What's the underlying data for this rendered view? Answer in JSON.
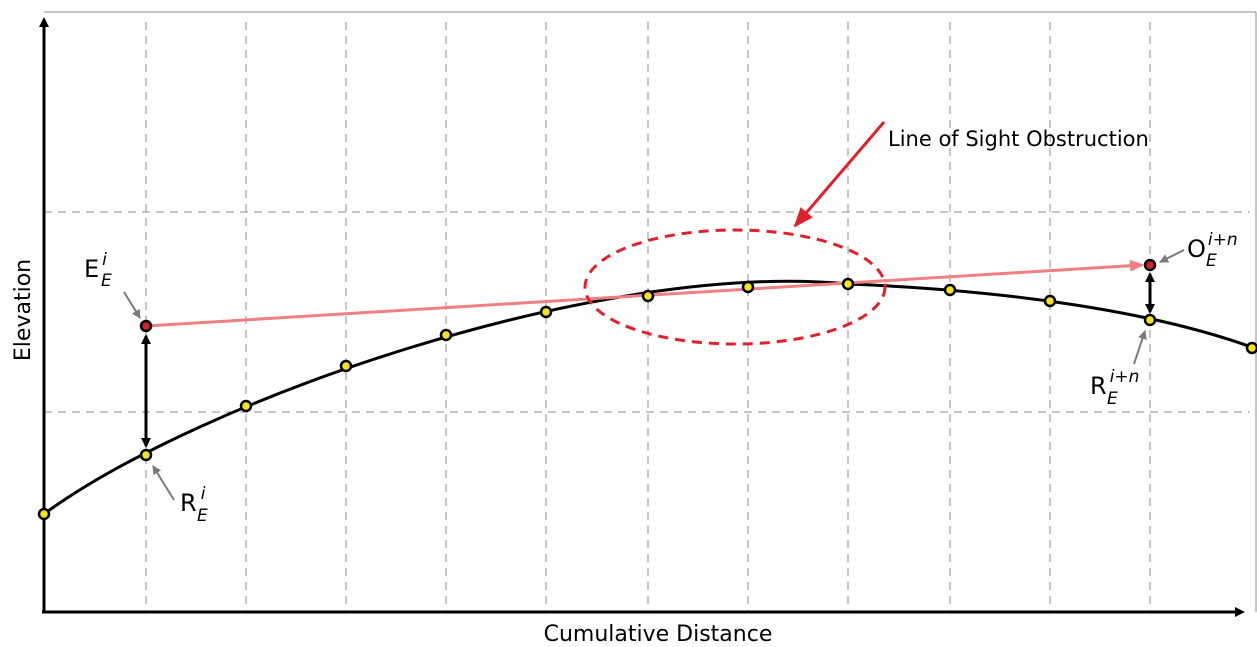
{
  "axes": {
    "x_label": "Cumulative Distance",
    "y_label": "Elevation"
  },
  "annotation": {
    "obstruction_label": "Line of Sight Obstruction"
  },
  "point_labels": {
    "eye": {
      "base": "E",
      "sup": "i",
      "sub": "E"
    },
    "eye_ground": {
      "base": "R",
      "sup": "i",
      "sub": "E"
    },
    "observed": {
      "base": "O",
      "sup": "i+n",
      "sub": "E"
    },
    "observed_ground": {
      "base": "R",
      "sup": "i+n",
      "sub": "E"
    }
  },
  "colors": {
    "terrain": "#000000",
    "terrain_point_fill": "#f5e31c",
    "eye_point_fill": "#d2232a",
    "sight_line": "#f08080",
    "obstruction": "#e0202a",
    "grid": "#8c8c8c",
    "label_arrow": "#7a7a7a"
  }
}
